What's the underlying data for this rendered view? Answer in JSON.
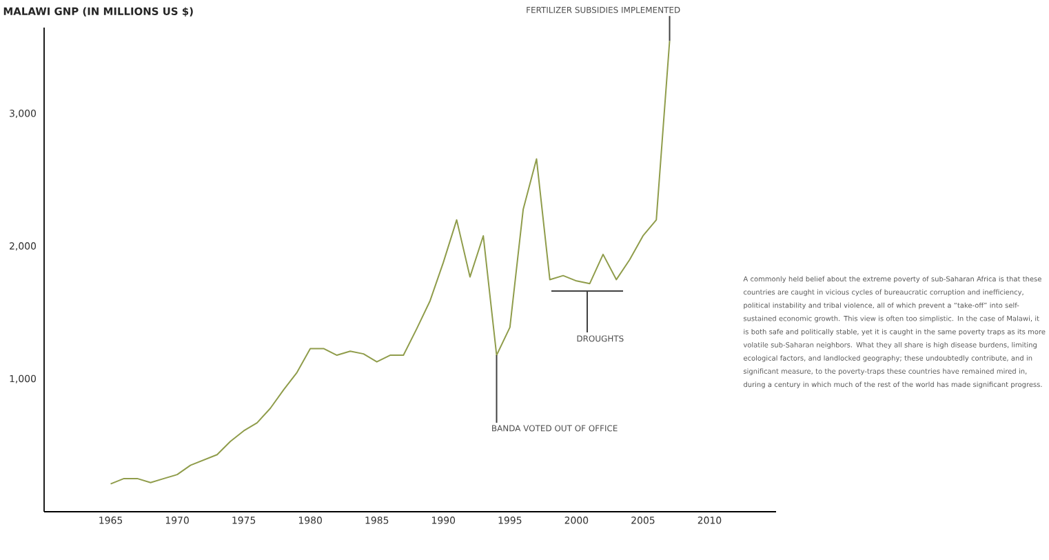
{
  "chart_data": {
    "type": "line",
    "title": "MALAWI GNP (IN MILLIONS US $)",
    "x": [
      1965,
      1966,
      1967,
      1968,
      1969,
      1970,
      1971,
      1972,
      1973,
      1974,
      1975,
      1976,
      1977,
      1978,
      1979,
      1980,
      1981,
      1982,
      1983,
      1984,
      1985,
      1986,
      1987,
      1988,
      1989,
      1990,
      1991,
      1992,
      1993,
      1994,
      1995,
      1996,
      1997,
      1998,
      1999,
      2000,
      2001,
      2002,
      2003,
      2004,
      2005,
      2006,
      2007
    ],
    "series": [
      {
        "color": "#8f9c4a",
        "values": [
          210,
          250,
          250,
          220,
          250,
          280,
          350,
          390,
          430,
          530,
          610,
          670,
          780,
          920,
          1050,
          1230,
          1230,
          1180,
          1210,
          1190,
          1130,
          1180,
          1180,
          1380,
          1590,
          1880,
          2200,
          1770,
          2080,
          1180,
          1390,
          2280,
          2660,
          1750,
          1780,
          1740,
          1720,
          1940,
          1750,
          1900,
          2080,
          2200,
          3550
        ]
      }
    ],
    "xlim": [
      1960,
      2015
    ],
    "ylim": [
      0,
      3650
    ],
    "xticks": [
      1965,
      1970,
      1975,
      1980,
      1985,
      1990,
      1995,
      2000,
      2005,
      2010
    ],
    "yticks": [
      {
        "value": 1000,
        "label": "1,000"
      },
      {
        "value": 2000,
        "label": "2,000"
      },
      {
        "value": 3000,
        "label": "3,000"
      }
    ],
    "annotations": [
      {
        "text": "BANDA VOTED OUT OF OFFICE",
        "x": 1994,
        "y": 1180
      },
      "DROUGHTS",
      {
        "text": "FERTILIZER SUBSIDIES IMPLEMENTED",
        "x": 2007,
        "y": 3550
      },
      "A commonly held belief about the extreme poverty of sub-Saharan Africa is that these countries are caught in vicious cycles of bureaucratic corruption and inefficiency, political instability and tribal violence, all of which prevent a “take-off” into self-sustained economic growth. This view is often too simplistic. In the case of Malawi, it is both safe and politically stable, yet it is caught in the same poverty traps as its more volatile sub-Saharan neighbors. What they all share is high disease burdens, limiting ecological factors, and landlocked geography; these undoubtedly contribute, and in significant measure, to the poverty-traps these countries have remained mired in, during a century in which much of the rest of the world has made significant progress."
    ]
  }
}
